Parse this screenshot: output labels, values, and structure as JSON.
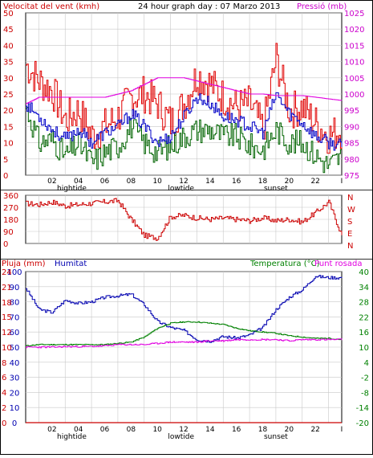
{
  "header": {
    "wind_label": "Velocitat del vent (kmh)",
    "title": "24 hour graph day : 07 Marzo 2013",
    "pressure_label": "Pressió (mb)"
  },
  "bottom_header": {
    "rain_label": "Pluja (mm)",
    "humidity_label": "Humitat",
    "temp_label": "Temperatura (°C)",
    "dew_label": "Punt rosada"
  },
  "colors": {
    "wind": "#e00000",
    "wind_gust": "#e00000",
    "wind_avg": "#006400",
    "wind_mean": "#0000c8",
    "pressure": "#e000e0",
    "direction": "#cc0000",
    "humidity": "#0000b0",
    "temperature": "#008000",
    "dew": "#e000e0",
    "rain": "#cc0000",
    "grid": "#c8c8c8"
  },
  "chart_data": [
    {
      "type": "line",
      "title": "24 hour graph day : 07 Marzo 2013",
      "ylabel": "Velocitat del vent (kmh)",
      "y2label": "Pressió (mb)",
      "ylim": [
        0,
        50
      ],
      "y2lim": [
        975,
        1025
      ],
      "yticks": [
        0,
        5,
        10,
        15,
        20,
        25,
        30,
        35,
        40,
        45,
        50
      ],
      "y2ticks": [
        975,
        980,
        985,
        990,
        995,
        1000,
        1005,
        1010,
        1015,
        1020,
        1025
      ],
      "x_hours": [
        0,
        1,
        2,
        3,
        4,
        5,
        6,
        7,
        8,
        9,
        10,
        11,
        12,
        13,
        14,
        15,
        16,
        17,
        18,
        19,
        20,
        21,
        22,
        23,
        24
      ],
      "xtick_labels": [
        "02",
        "04",
        "06",
        "08",
        "10",
        "12",
        "14",
        "16",
        "18",
        "20",
        "22",
        "I"
      ],
      "markers": [
        "hightide",
        "lowtide",
        "sunset"
      ],
      "series": [
        {
          "name": "gust",
          "values": [
            34,
            29,
            26,
            17,
            20,
            12,
            15,
            18,
            24,
            25,
            22,
            16,
            22,
            31,
            28,
            24,
            21,
            22,
            14,
            36,
            20,
            21,
            16,
            12,
            14
          ]
        },
        {
          "name": "wind",
          "values": [
            21,
            10,
            11,
            6,
            10,
            4,
            7,
            9,
            15,
            10,
            7,
            9,
            12,
            14,
            14,
            12,
            12,
            9,
            8,
            14,
            10,
            10,
            6,
            3,
            6
          ]
        },
        {
          "name": "average",
          "values": [
            22,
            18,
            14,
            11,
            14,
            10,
            13,
            15,
            19,
            15,
            10,
            12,
            18,
            24,
            22,
            18,
            17,
            15,
            13,
            25,
            19,
            16,
            12,
            10,
            9
          ]
        },
        {
          "name": "pressure",
          "values": [
            997,
            999,
            999,
            999,
            999,
            999,
            999,
            1000,
            1001,
            1003,
            1005,
            1005,
            1005,
            1004,
            1003,
            1002,
            1001,
            1000,
            1000,
            999.5,
            999.5,
            999.5,
            999,
            998.5,
            998
          ]
        }
      ]
    },
    {
      "type": "line",
      "ylim": [
        0,
        360
      ],
      "yticks": [
        0,
        90,
        180,
        270,
        360
      ],
      "direction_labels": [
        "N",
        "W",
        "S",
        "E",
        "N"
      ],
      "series": [
        {
          "name": "direction",
          "values": [
            300,
            290,
            310,
            280,
            290,
            300,
            310,
            320,
            180,
            60,
            40,
            200,
            210,
            190,
            180,
            190,
            180,
            170,
            190,
            170,
            180,
            160,
            230,
            310,
            60
          ]
        }
      ]
    },
    {
      "type": "line",
      "ylim": [
        0,
        100
      ],
      "yticks_humidity": [
        0,
        10,
        20,
        30,
        40,
        50,
        60,
        70,
        80,
        90,
        100
      ],
      "yticks_rain": [
        0,
        2,
        4,
        6,
        8,
        10,
        12,
        15,
        18,
        21,
        24,
        27,
        30
      ],
      "y2lim": [
        -20,
        40
      ],
      "y2ticks": [
        -20,
        -14,
        -8,
        -2,
        4,
        10,
        16,
        22,
        28,
        34,
        40
      ],
      "series": [
        {
          "name": "humidity",
          "values": [
            89,
            75,
            73,
            81,
            79,
            80,
            83,
            84,
            85,
            78,
            67,
            63,
            61,
            55,
            54,
            57,
            56,
            58,
            63,
            75,
            83,
            88,
            97,
            96,
            96
          ]
        },
        {
          "name": "temperature",
          "values": [
            10.5,
            11,
            11,
            11,
            11,
            11,
            11,
            11.5,
            12,
            14,
            17.5,
            19.5,
            20,
            20,
            19.5,
            19,
            17.5,
            16.5,
            16,
            15.5,
            14.5,
            14,
            13.5,
            13.5,
            13
          ]
        },
        {
          "name": "dew",
          "values": [
            10,
            10,
            10,
            10.2,
            10.2,
            10.3,
            10.5,
            11,
            11,
            11,
            11.5,
            12,
            12,
            12,
            12.5,
            12.5,
            13,
            13,
            13,
            13,
            12.5,
            13,
            13,
            13,
            13
          ]
        },
        {
          "name": "rain",
          "values": [
            0,
            0,
            0,
            0,
            0,
            0,
            0,
            0,
            0,
            0,
            0,
            0,
            0,
            0,
            0,
            0,
            0,
            0,
            0,
            0,
            0,
            0,
            0,
            0,
            0
          ]
        }
      ]
    }
  ]
}
